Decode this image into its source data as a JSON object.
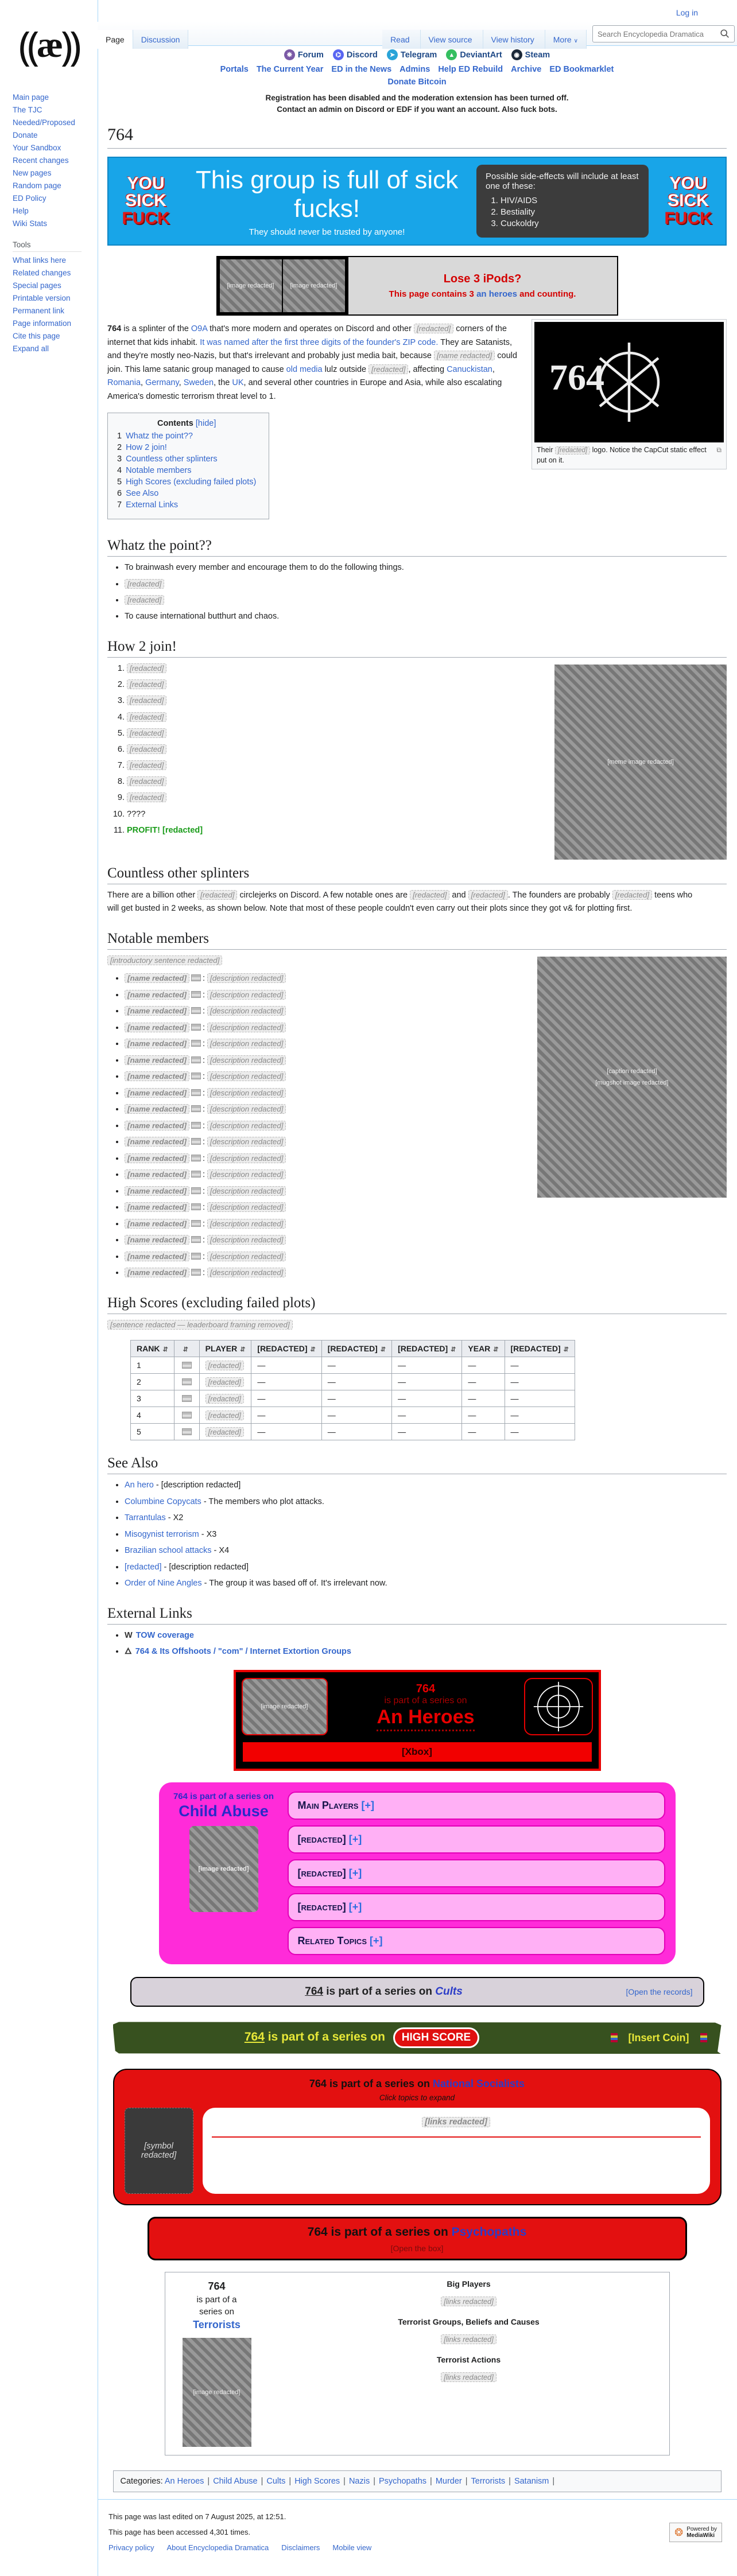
{
  "note": "Recreation of wiki page layout. Content that glorified violence/child exploitation, personal names, slurs and extremist imagery has been redacted and replaced with [redacted] placeholders.",
  "chrome": {
    "login": "Log in",
    "tabs_left": [
      {
        "label": "Page",
        "active": true
      },
      {
        "label": "Discussion",
        "active": false
      }
    ],
    "tabs_right": [
      {
        "label": "Read",
        "active": true
      },
      {
        "label": "View source",
        "active": false
      },
      {
        "label": "View history",
        "active": false
      },
      {
        "label": "More",
        "active": false,
        "caret": "∨"
      }
    ],
    "search_placeholder": "Search Encyclopedia Dramatica"
  },
  "sidebar": {
    "nav": [
      "Main page",
      "The TJC",
      "Needed/Proposed",
      "Donate",
      "Your Sandbox",
      "Recent changes",
      "New pages",
      "Random page",
      "ED Policy",
      "Help",
      "Wiki Stats"
    ],
    "tools_label": "Tools",
    "tools": [
      "What links here",
      "Related changes",
      "Special pages",
      "Printable version",
      "Permanent link",
      "Page information",
      "Cite this page",
      "Expand all"
    ]
  },
  "header": {
    "social": [
      {
        "label": "Forum",
        "color": "#7b5aa6",
        "glyph": "❋"
      },
      {
        "label": "Discord",
        "color": "#5865f2",
        "glyph": "⌬"
      },
      {
        "label": "Telegram",
        "color": "#2aa4d8",
        "glyph": "➤"
      },
      {
        "label": "DeviantArt",
        "color": "#35bf60",
        "glyph": "▲"
      },
      {
        "label": "Steam",
        "color": "#1b2838",
        "glyph": "◉"
      }
    ],
    "portals": [
      "Portals",
      "The Current Year",
      "ED in the News",
      "Admins",
      "Help ED Rebuild",
      "Archive",
      "ED Bookmarklet"
    ],
    "donate": "Donate Bitcoin",
    "notice1": "Registration has been disabled and the moderation extension has been turned off.",
    "notice2": "Contact an admin on Discord or EDF if you want an account. Also fuck bots."
  },
  "page": {
    "title": "764"
  },
  "banner": {
    "side_words": [
      "YOU",
      "SICK",
      "FUCK"
    ],
    "headline": "This group is full of sick fucks!",
    "subline": "They should never be trusted by anyone!",
    "sidefx_title": "Possible side-effects will include at least one of these:",
    "sidefx": [
      "HIV/AIDS",
      "Bestiality",
      "Cuckoldry"
    ]
  },
  "ipods": {
    "title": "Lose 3 iPods?",
    "line_pre": "This page contains 3",
    "line_link": "an heroes",
    "line_post": "and counting.",
    "img_label": "[image redacted]"
  },
  "intro": [
    {
      "t": "764",
      "k": "b"
    },
    {
      "t": " is a splinter of the ",
      "k": "p"
    },
    {
      "t": "O9A",
      "k": "a"
    },
    {
      "t": " that's more modern and operates on Discord and other ",
      "k": "p"
    },
    {
      "t": "[redacted]",
      "k": "r"
    },
    {
      "t": " corners of the internet that kids inhabit. ",
      "k": "p"
    },
    {
      "t": "It was named after the first three digits of the founder's ZIP code.",
      "k": "a"
    },
    {
      "t": " They are Satanists, and they're mostly neo-Nazis, but that's irrelevant and probably just media bait, because ",
      "k": "p"
    },
    {
      "t": "[name redacted]",
      "k": "r"
    },
    {
      "t": " could join. This lame satanic group managed to cause ",
      "k": "p"
    },
    {
      "t": "old media",
      "k": "a"
    },
    {
      "t": " lulz outside ",
      "k": "p"
    },
    {
      "t": "[redacted]",
      "k": "r"
    },
    {
      "t": ", affecting ",
      "k": "p"
    },
    {
      "t": "Canuckistan",
      "k": "a"
    },
    {
      "t": ", ",
      "k": "p"
    },
    {
      "t": "Romania",
      "k": "a"
    },
    {
      "t": ", ",
      "k": "p"
    },
    {
      "t": "Germany",
      "k": "a"
    },
    {
      "t": ", ",
      "k": "p"
    },
    {
      "t": "Sweden",
      "k": "a"
    },
    {
      "t": ", the ",
      "k": "p"
    },
    {
      "t": "UK",
      "k": "a"
    },
    {
      "t": ", and several other countries in Europe and Asia, while also escalating America's domestic terrorism threat level to 1.",
      "k": "p"
    }
  ],
  "infobox": {
    "caption_pre": "Their ",
    "caption_red": "[redacted]",
    "caption_post": " logo. Notice the CapCut static effect put on it.",
    "magnify": "⧉"
  },
  "toc": {
    "title": "Contents",
    "hide": "[hide]",
    "items": [
      {
        "n": "1",
        "label": "Whatz the point??"
      },
      {
        "n": "2",
        "label": "How 2 join!"
      },
      {
        "n": "3",
        "label": "Countless other splinters"
      },
      {
        "n": "4",
        "label": "Notable members"
      },
      {
        "n": "5",
        "label": "High Scores (excluding failed plots)"
      },
      {
        "n": "6",
        "label": "See Also"
      },
      {
        "n": "7",
        "label": "External Links"
      }
    ]
  },
  "whatz": {
    "heading": "Whatz the point??",
    "bullets": [
      {
        "t": "To brainwash every member and encourage them to do the following things.",
        "k": "p"
      },
      {
        "t": "[redacted]",
        "k": "r"
      },
      {
        "t": "[redacted]",
        "k": "r"
      },
      {
        "t": "To cause international butthurt and chaos.",
        "k": "p"
      }
    ]
  },
  "join": {
    "heading": "How 2 join!",
    "items": [
      {
        "t": "[redacted]",
        "k": "r"
      },
      {
        "t": "[redacted]",
        "k": "r"
      },
      {
        "t": "[redacted]",
        "k": "r"
      },
      {
        "t": "[redacted]",
        "k": "r"
      },
      {
        "t": "[redacted]",
        "k": "r"
      },
      {
        "t": "[redacted]",
        "k": "r"
      },
      {
        "t": "[redacted]",
        "k": "r"
      },
      {
        "t": "[redacted]",
        "k": "r"
      },
      {
        "t": "[redacted]",
        "k": "r"
      },
      {
        "t": "????",
        "k": "p"
      },
      {
        "t": "PROFIT! [redacted]",
        "k": "g"
      }
    ],
    "img_label": "[meme image redacted]"
  },
  "splinters": {
    "heading": "Countless other splinters",
    "segs": [
      {
        "t": "There are a billion other ",
        "k": "p"
      },
      {
        "t": "[redacted]",
        "k": "r"
      },
      {
        "t": " circlejerks on Discord. A few notable ones are ",
        "k": "p"
      },
      {
        "t": "[redacted]",
        "k": "r"
      },
      {
        "t": " and ",
        "k": "p"
      },
      {
        "t": "[redacted]",
        "k": "r"
      },
      {
        "t": ". The founders are probably ",
        "k": "p"
      },
      {
        "t": "[redacted]",
        "k": "r"
      },
      {
        "t": " teens who will get busted in 2 weeks, as shown below. Note that most of these people couldn't even carry out their plots since they got v& for plotting first.",
        "k": "p"
      }
    ]
  },
  "members": {
    "heading": "Notable members",
    "intro": "[introductory sentence redacted]",
    "img_label": "[mugshot image redacted]",
    "img_caption": "[caption redacted]",
    "rows": [
      {
        "name": "[name redacted]",
        "desc": "[description redacted]"
      },
      {
        "name": "[name redacted]",
        "desc": "[description redacted]"
      },
      {
        "name": "[name redacted]",
        "desc": "[description redacted]"
      },
      {
        "name": "[name redacted]",
        "desc": "[description redacted]"
      },
      {
        "name": "[name redacted]",
        "desc": "[description redacted]"
      },
      {
        "name": "[name redacted]",
        "desc": "[description redacted]"
      },
      {
        "name": "[name redacted]",
        "desc": "[description redacted]"
      },
      {
        "name": "[name redacted]",
        "desc": "[description redacted]"
      },
      {
        "name": "[name redacted]",
        "desc": "[description redacted]"
      },
      {
        "name": "[name redacted]",
        "desc": "[description redacted]"
      },
      {
        "name": "[name redacted]",
        "desc": "[description redacted]"
      },
      {
        "name": "[name redacted]",
        "desc": "[description redacted]"
      },
      {
        "name": "[name redacted]",
        "desc": "[description redacted]"
      },
      {
        "name": "[name redacted]",
        "desc": "[description redacted]"
      },
      {
        "name": "[name redacted]",
        "desc": "[description redacted]"
      },
      {
        "name": "[name redacted]",
        "desc": "[description redacted]"
      },
      {
        "name": "[name redacted]",
        "desc": "[description redacted]"
      },
      {
        "name": "[name redacted]",
        "desc": "[description redacted]"
      },
      {
        "name": "[name redacted]",
        "desc": "[description redacted]"
      }
    ]
  },
  "hiscores": {
    "heading": "High Scores (excluding failed plots)",
    "intro": "[sentence redacted — leaderboard framing removed]",
    "headers": [
      "RANK",
      "",
      "PLAYER",
      "[REDACTED]",
      "[REDACTED]",
      "[REDACTED]",
      "YEAR",
      "[REDACTED]"
    ],
    "rows": [
      [
        "1",
        "",
        "[redacted]",
        "—",
        "—",
        "—",
        "—",
        "—"
      ],
      [
        "2",
        "",
        "[redacted]",
        "—",
        "—",
        "—",
        "—",
        "—"
      ],
      [
        "3",
        "",
        "[redacted]",
        "—",
        "—",
        "—",
        "—",
        "—"
      ],
      [
        "4",
        "",
        "[redacted]",
        "—",
        "—",
        "—",
        "—",
        "—"
      ],
      [
        "5",
        "",
        "[redacted]",
        "—",
        "—",
        "—",
        "—",
        "—"
      ]
    ]
  },
  "seealso": {
    "heading": "See Also",
    "items": [
      {
        "link": "An hero",
        "desc": "[description redacted]"
      },
      {
        "link": "Columbine Copycats",
        "desc": "The members who plot attacks."
      },
      {
        "link": "Tarrantulas",
        "desc": "X2"
      },
      {
        "link": "Misogynist terrorism",
        "desc": "X3"
      },
      {
        "link": "Brazilian school attacks",
        "desc": "X4"
      },
      {
        "link": "[redacted]",
        "desc": "[description redacted]"
      },
      {
        "link": "Order of Nine Angles",
        "desc": "The group it was based off of. It's irrelevant now."
      }
    ]
  },
  "external": {
    "heading": "External Links",
    "items": [
      {
        "icon": "W",
        "label": "TOW coverage"
      },
      {
        "icon": "🜂",
        "label": "764 & Its Offshoots / \"com\" / Internet Extortion Groups"
      }
    ]
  },
  "series": {
    "anheroes": {
      "t1": "764",
      "t2": "is part of a series on",
      "t3": "An Heroes",
      "btn": "[Xbox]",
      "img_label": "[image redacted]"
    },
    "childabuse": {
      "s1": "764 is part of a series on",
      "s2": "Child Abuse",
      "img_label": "[image redacted]",
      "rows": [
        {
          "label": "Main Players",
          "plus": "[+]"
        },
        {
          "label": "[redacted]",
          "plus": "[+]"
        },
        {
          "label": "[redacted]",
          "plus": "[+]"
        },
        {
          "label": "[redacted]",
          "plus": "[+]"
        },
        {
          "label": "Related Topics",
          "plus": "[+]"
        }
      ]
    },
    "cults": {
      "pre": "764",
      "mid": " is part of a series on ",
      "name": "Cults",
      "open": "[Open the records]"
    },
    "highscore": {
      "pre": "764",
      "mid": " is part of a series on ",
      "badge": "HIGH SCORE",
      "coin": "[Insert Coin]"
    },
    "ns": {
      "pre": "764 is part of a series on ",
      "name": "National Socialists",
      "sub": "Click topics to expand",
      "links": "[links redacted]",
      "sym_label": "[symbol redacted]"
    },
    "psy": {
      "pre": "764 is part of a series on ",
      "name": "Psychopaths",
      "open": "[Open the box]"
    },
    "terror": {
      "l1": "764",
      "l2": "is part of a",
      "l3": "series on",
      "name": "Terrorists",
      "img_label": "[image redacted]",
      "groups": [
        {
          "h": "Big Players",
          "body": "[links redacted]"
        },
        {
          "h": "Terrorist Groups, Beliefs and Causes",
          "body": "[links redacted]"
        },
        {
          "h": "Terrorist Actions",
          "body": "[links redacted]"
        }
      ]
    }
  },
  "footer": {
    "cats_label": "Categories:",
    "cats": [
      "An Heroes",
      "Child Abuse",
      "Cults",
      "High Scores",
      "Nazis",
      "Psychopaths",
      "Murder",
      "Terrorists",
      "Satanism"
    ],
    "edited": "This page was last edited on 7 August 2025, at 12:51.",
    "accessed": "This page has been accessed 4,301 times.",
    "links": [
      "Privacy policy",
      "About Encyclopedia Dramatica",
      "Disclaimers",
      "Mobile view"
    ],
    "badge1": "Powered by",
    "badge2": "MediaWiki"
  }
}
